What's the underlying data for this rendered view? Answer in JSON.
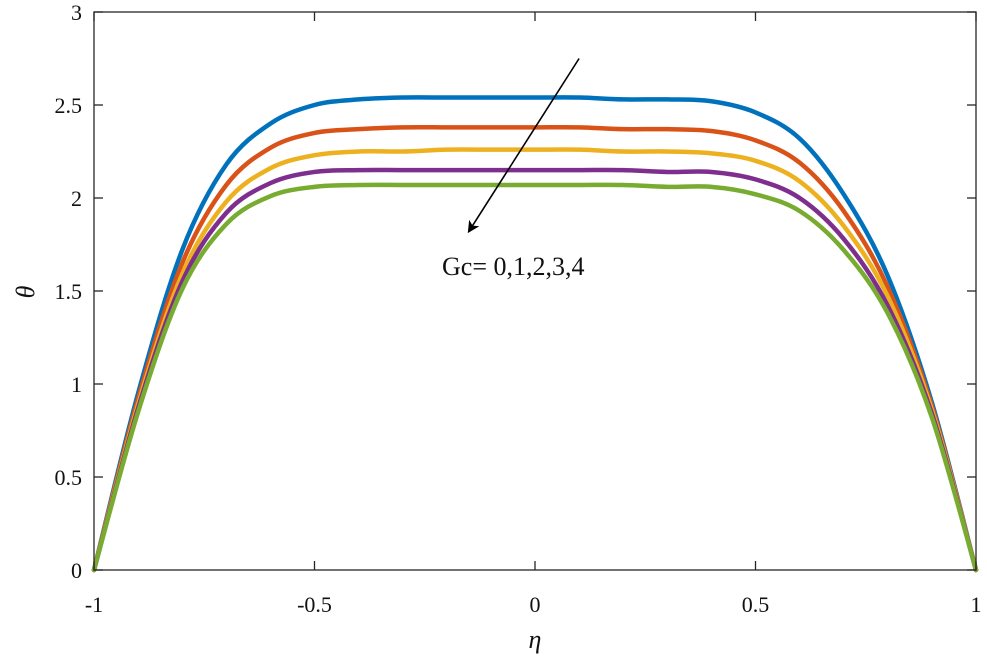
{
  "chart_data": {
    "type": "line",
    "xlabel": "η",
    "ylabel": "θ",
    "xlim": [
      -1,
      1
    ],
    "ylim": [
      0,
      3
    ],
    "grid": false,
    "xticks": [
      -1,
      -0.5,
      0,
      0.5,
      1
    ],
    "xtick_labels": [
      "-1",
      "-0.5",
      "0",
      "0.5",
      "1"
    ],
    "yticks": [
      0,
      0.5,
      1,
      1.5,
      2,
      2.5,
      3
    ],
    "ytick_labels": [
      "0",
      "0.5",
      "1",
      "1.5",
      "2",
      "2.5",
      "3"
    ],
    "x": [
      -1,
      -0.9,
      -0.8,
      -0.7,
      -0.6,
      -0.5,
      -0.4,
      -0.3,
      -0.2,
      -0.1,
      0,
      0.1,
      0.2,
      0.3,
      0.4,
      0.5,
      0.6,
      0.7,
      0.8,
      0.9,
      1
    ],
    "series": [
      {
        "color": "#0072BD",
        "values": [
          0,
          0.95,
          1.72,
          2.18,
          2.4,
          2.5,
          2.53,
          2.54,
          2.54,
          2.54,
          2.54,
          2.54,
          2.53,
          2.53,
          2.52,
          2.46,
          2.32,
          2.02,
          1.58,
          0.9,
          0
        ]
      },
      {
        "color": "#D95319",
        "values": [
          0,
          0.92,
          1.65,
          2.07,
          2.27,
          2.35,
          2.37,
          2.38,
          2.38,
          2.38,
          2.38,
          2.38,
          2.37,
          2.37,
          2.36,
          2.31,
          2.19,
          1.93,
          1.52,
          0.88,
          0
        ]
      },
      {
        "color": "#EDB120",
        "values": [
          0,
          0.89,
          1.59,
          1.98,
          2.16,
          2.23,
          2.25,
          2.25,
          2.26,
          2.26,
          2.26,
          2.26,
          2.25,
          2.25,
          2.24,
          2.2,
          2.09,
          1.85,
          1.47,
          0.86,
          0
        ]
      },
      {
        "color": "#7E2F8E",
        "values": [
          0,
          0.87,
          1.55,
          1.92,
          2.08,
          2.14,
          2.15,
          2.15,
          2.15,
          2.15,
          2.15,
          2.15,
          2.15,
          2.14,
          2.14,
          2.1,
          2.0,
          1.78,
          1.42,
          0.84,
          0
        ]
      },
      {
        "color": "#77AC30",
        "values": [
          0,
          0.85,
          1.51,
          1.86,
          2.01,
          2.06,
          2.07,
          2.07,
          2.07,
          2.07,
          2.07,
          2.07,
          2.07,
          2.06,
          2.06,
          2.02,
          1.93,
          1.72,
          1.38,
          0.82,
          0
        ]
      }
    ],
    "annotation": {
      "text": "Gc= 0,1,2,3,4",
      "arrow_from": [
        0.1,
        2.75
      ],
      "arrow_to": [
        -0.15,
        1.82
      ]
    }
  }
}
